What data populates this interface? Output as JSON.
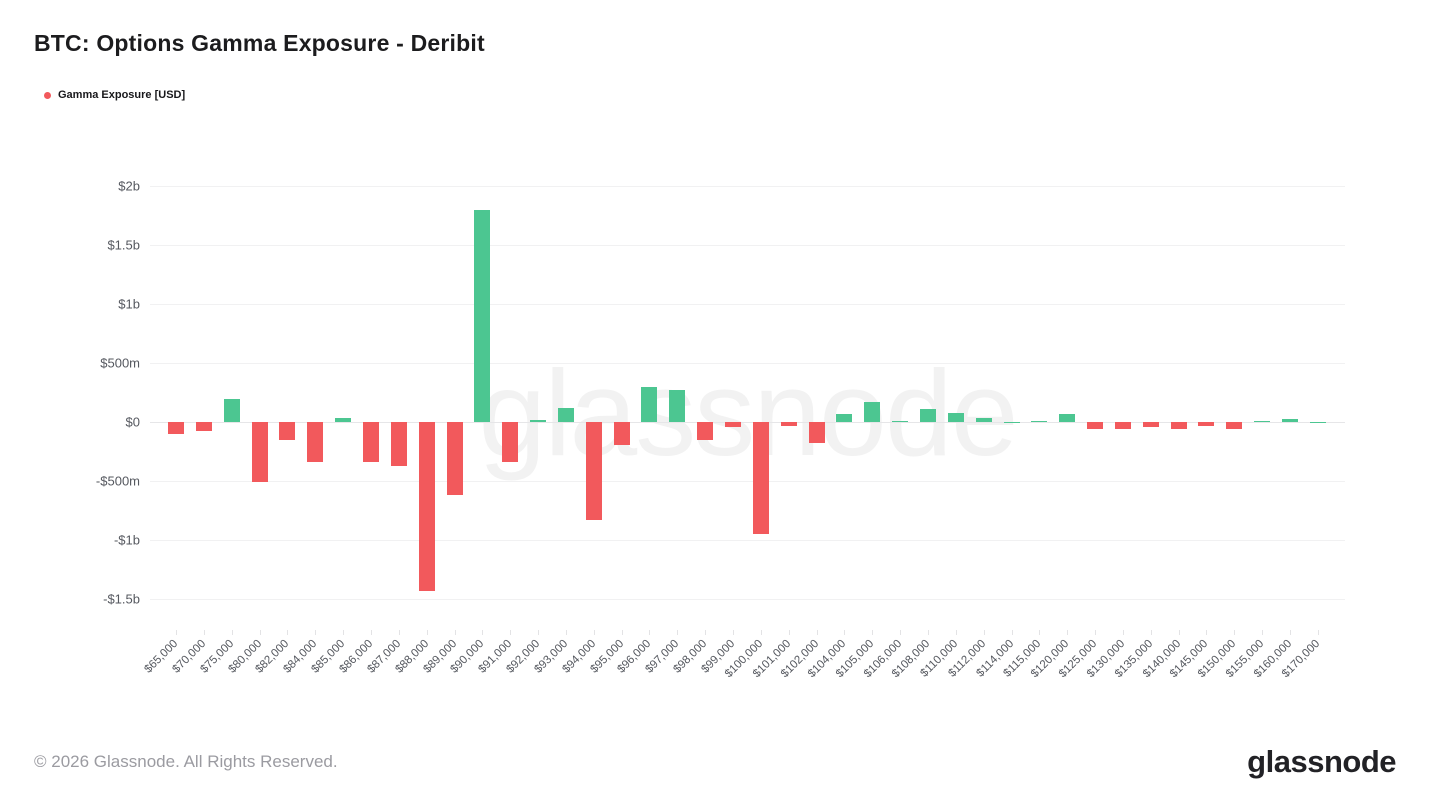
{
  "page": {
    "title": "BTC: Options Gamma Exposure - Deribit",
    "footer": "© 2026 Glassnode. All Rights Reserved.",
    "logo_text": "glassnode",
    "watermark_text": "glassnode"
  },
  "legend": {
    "items": [
      {
        "label": "Gamma Exposure [USD]",
        "color": "#F2595C"
      }
    ]
  },
  "chart_data": {
    "type": "bar",
    "title": "BTC: Options Gamma Exposure - Deribit",
    "series_name": "Gamma Exposure [USD]",
    "xlabel": "",
    "ylabel": "",
    "unit": "USD millions",
    "grid": "horizontal",
    "legend_position": "top-left",
    "colors": {
      "positive": "#4CC691",
      "negative": "#F2595C"
    },
    "categories": [
      "$65,000",
      "$70,000",
      "$75,000",
      "$80,000",
      "$82,000",
      "$84,000",
      "$85,000",
      "$86,000",
      "$87,000",
      "$88,000",
      "$89,000",
      "$90,000",
      "$91,000",
      "$92,000",
      "$93,000",
      "$94,000",
      "$95,000",
      "$96,000",
      "$97,000",
      "$98,000",
      "$99,000",
      "$100,000",
      "$101,000",
      "$102,000",
      "$104,000",
      "$105,000",
      "$106,000",
      "$108,000",
      "$110,000",
      "$112,000",
      "$114,000",
      "$115,000",
      "$120,000",
      "$125,000",
      "$130,000",
      "$135,000",
      "$140,000",
      "$145,000",
      "$150,000",
      "$155,000",
      "$160,000",
      "$170,000"
    ],
    "values": [
      -100,
      -80,
      195,
      -510,
      -155,
      -335,
      35,
      -335,
      -370,
      -1430,
      -615,
      1790,
      -335,
      15,
      120,
      -830,
      -195,
      295,
      270,
      -150,
      -40,
      -945,
      -30,
      -175,
      70,
      165,
      10,
      110,
      80,
      30,
      3,
      12,
      70,
      -60,
      -55,
      -40,
      -55,
      -30,
      -55,
      10,
      25,
      2
    ],
    "y_axis": {
      "ticks": [
        {
          "label": "$2b",
          "value": 2000
        },
        {
          "label": "$1.5b",
          "value": 1500
        },
        {
          "label": "$1b",
          "value": 1000
        },
        {
          "label": "$500m",
          "value": 500
        },
        {
          "label": "$0",
          "value": 0
        },
        {
          "label": "-$500m",
          "value": -500
        },
        {
          "label": "-$1b",
          "value": -1000
        },
        {
          "label": "-$1.5b",
          "value": -1500
        }
      ],
      "range_top": 2215,
      "range_bottom": -1760
    }
  }
}
